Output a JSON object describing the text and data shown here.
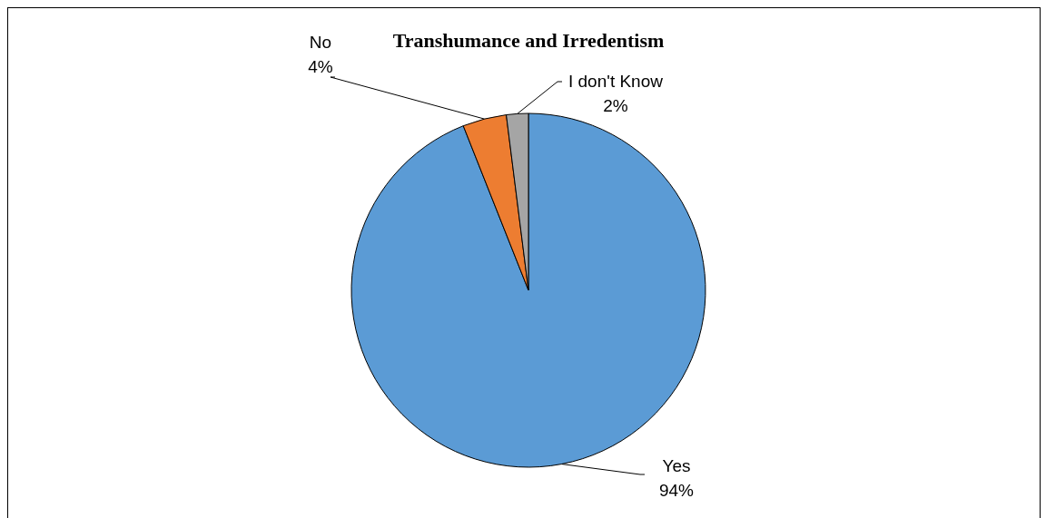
{
  "chart_data": {
    "type": "pie",
    "title": "Transhumance and Irredentism",
    "categories": [
      "Yes",
      "No",
      "I don't Know"
    ],
    "values": [
      94,
      4,
      2
    ],
    "colors": [
      "#5b9bd5",
      "#ed7d31",
      "#a5a5a5"
    ],
    "value_labels": [
      "94%",
      "4%",
      "2%"
    ]
  }
}
